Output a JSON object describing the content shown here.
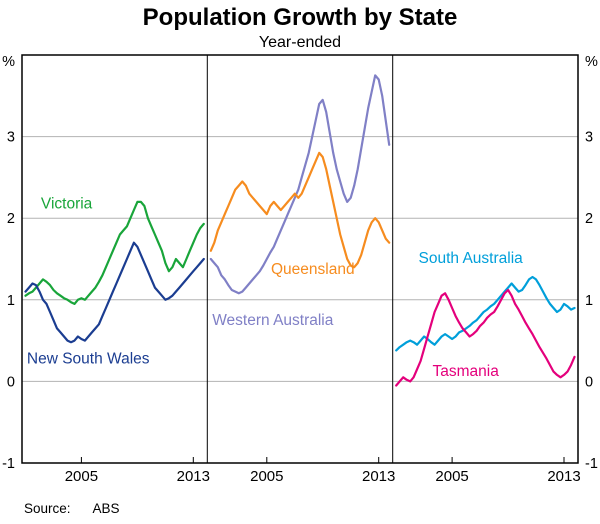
{
  "title": "Population Growth by State",
  "subtitle": "Year-ended",
  "source": {
    "label": "Source:",
    "value": "ABS"
  },
  "axis": {
    "unit": "%",
    "ylim": [
      -1,
      4
    ],
    "y_gridlines": [
      0,
      1,
      2,
      3
    ],
    "y_tick_labels": [
      3,
      2,
      1,
      0,
      -1
    ],
    "x_ticks": [
      2005,
      2013
    ],
    "xlim": [
      2000.75,
      2014.0
    ]
  },
  "chart_data": {
    "type": "line",
    "x_start": 2001.0,
    "x_step": 0.25,
    "panels": [
      {
        "name": "panel-vic-nsw",
        "series": [
          {
            "name": "Victoria",
            "color": "#19a53a",
            "values": [
              1.05,
              1.08,
              1.1,
              1.15,
              1.2,
              1.25,
              1.22,
              1.18,
              1.12,
              1.08,
              1.05,
              1.02,
              1.0,
              0.97,
              0.95,
              1.0,
              1.02,
              1.0,
              1.05,
              1.1,
              1.15,
              1.22,
              1.3,
              1.4,
              1.5,
              1.6,
              1.7,
              1.8,
              1.85,
              1.9,
              2.0,
              2.1,
              2.2,
              2.2,
              2.15,
              2.0,
              1.9,
              1.8,
              1.7,
              1.6,
              1.45,
              1.35,
              1.4,
              1.5,
              1.45,
              1.4,
              1.5,
              1.6,
              1.7,
              1.8,
              1.88,
              1.93
            ]
          },
          {
            "name": "New South Wales",
            "color": "#1b3d91",
            "values": [
              1.1,
              1.15,
              1.2,
              1.18,
              1.1,
              1.0,
              0.95,
              0.85,
              0.75,
              0.65,
              0.6,
              0.55,
              0.5,
              0.48,
              0.5,
              0.55,
              0.52,
              0.5,
              0.55,
              0.6,
              0.65,
              0.7,
              0.8,
              0.9,
              1.0,
              1.1,
              1.2,
              1.3,
              1.4,
              1.5,
              1.6,
              1.7,
              1.65,
              1.55,
              1.45,
              1.35,
              1.25,
              1.15,
              1.1,
              1.05,
              1.0,
              1.02,
              1.05,
              1.1,
              1.15,
              1.2,
              1.25,
              1.3,
              1.35,
              1.4,
              1.45,
              1.5
            ]
          }
        ],
        "labels": [
          {
            "text": "Victoria",
            "color": "#19a53a",
            "x": 2002.1,
            "y": 2.18
          },
          {
            "text": "New South Wales",
            "color": "#1b3d91",
            "x": 2001.1,
            "y": 0.28
          }
        ]
      },
      {
        "name": "panel-qld-wa",
        "series": [
          {
            "name": "Western Australia",
            "color": "#8080c6",
            "values": [
              1.5,
              1.45,
              1.4,
              1.3,
              1.25,
              1.18,
              1.12,
              1.1,
              1.08,
              1.1,
              1.15,
              1.2,
              1.25,
              1.3,
              1.35,
              1.42,
              1.5,
              1.58,
              1.65,
              1.75,
              1.85,
              1.95,
              2.05,
              2.15,
              2.25,
              2.35,
              2.5,
              2.65,
              2.8,
              3.0,
              3.2,
              3.4,
              3.45,
              3.3,
              3.05,
              2.8,
              2.6,
              2.45,
              2.3,
              2.2,
              2.25,
              2.4,
              2.6,
              2.85,
              3.1,
              3.35,
              3.55,
              3.75,
              3.7,
              3.5,
              3.2,
              2.9
            ]
          },
          {
            "name": "Queensland",
            "color": "#f68c1f",
            "values": [
              1.6,
              1.7,
              1.85,
              1.95,
              2.05,
              2.15,
              2.25,
              2.35,
              2.4,
              2.45,
              2.4,
              2.3,
              2.25,
              2.2,
              2.15,
              2.1,
              2.05,
              2.15,
              2.2,
              2.15,
              2.1,
              2.15,
              2.2,
              2.25,
              2.3,
              2.25,
              2.3,
              2.4,
              2.5,
              2.6,
              2.7,
              2.8,
              2.75,
              2.6,
              2.4,
              2.2,
              2.0,
              1.8,
              1.65,
              1.5,
              1.42,
              1.4,
              1.45,
              1.55,
              1.7,
              1.85,
              1.95,
              2.0,
              1.95,
              1.85,
              1.75,
              1.7
            ]
          }
        ],
        "labels": [
          {
            "text": "Queensland",
            "color": "#f68c1f",
            "x": 2005.3,
            "y": 1.38
          },
          {
            "text": "Western Australia",
            "color": "#8080c6",
            "x": 2001.1,
            "y": 0.75
          }
        ]
      },
      {
        "name": "panel-sa-tas",
        "series": [
          {
            "name": "South Australia",
            "color": "#009fda",
            "values": [
              0.38,
              0.42,
              0.45,
              0.48,
              0.5,
              0.48,
              0.45,
              0.5,
              0.55,
              0.52,
              0.48,
              0.45,
              0.5,
              0.55,
              0.58,
              0.55,
              0.52,
              0.55,
              0.6,
              0.62,
              0.65,
              0.68,
              0.72,
              0.75,
              0.8,
              0.85,
              0.88,
              0.92,
              0.95,
              1.0,
              1.05,
              1.1,
              1.15,
              1.2,
              1.15,
              1.1,
              1.12,
              1.18,
              1.25,
              1.28,
              1.25,
              1.18,
              1.1,
              1.02,
              0.95,
              0.9,
              0.85,
              0.88,
              0.95,
              0.92,
              0.88,
              0.9
            ]
          },
          {
            "name": "Tasmania",
            "color": "#e4007c",
            "values": [
              -0.05,
              0.0,
              0.05,
              0.02,
              0.0,
              0.05,
              0.15,
              0.25,
              0.4,
              0.55,
              0.7,
              0.85,
              0.95,
              1.05,
              1.08,
              1.0,
              0.9,
              0.8,
              0.72,
              0.65,
              0.6,
              0.55,
              0.58,
              0.62,
              0.68,
              0.72,
              0.78,
              0.82,
              0.85,
              0.92,
              1.0,
              1.08,
              1.12,
              1.05,
              0.95,
              0.88,
              0.8,
              0.72,
              0.65,
              0.58,
              0.5,
              0.42,
              0.35,
              0.28,
              0.2,
              0.12,
              0.08,
              0.05,
              0.08,
              0.12,
              0.2,
              0.3
            ]
          }
        ],
        "labels": [
          {
            "text": "South Australia",
            "color": "#009fda",
            "x": 2002.6,
            "y": 1.51
          },
          {
            "text": "Tasmania",
            "color": "#e4007c",
            "x": 2003.6,
            "y": 0.13
          }
        ]
      }
    ]
  }
}
